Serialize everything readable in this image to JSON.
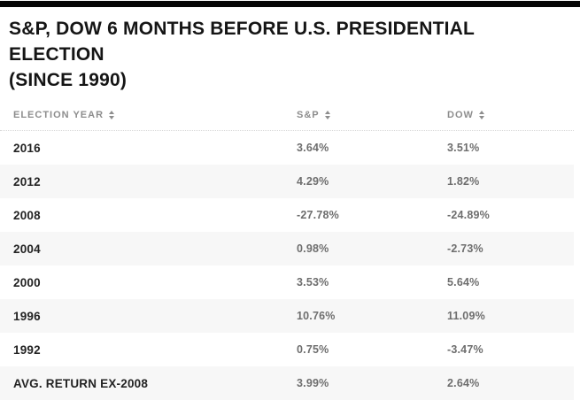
{
  "header": {
    "title_line1": "S&P, DOW 6 MONTHS BEFORE U.S. PRESIDENTIAL ELECTION",
    "title_line2": "(SINCE 1990)"
  },
  "colors": {
    "top_bar": "#050505",
    "title_text": "#151515",
    "header_text": "#8d8d8d",
    "year_text": "#232323",
    "value_text": "#6e6e6e",
    "row_alt_bg": "#f7f7f7",
    "header_border": "#d8d8d8"
  },
  "table": {
    "columns": [
      {
        "label": "ELECTION YEAR",
        "icon": "sort-arrows"
      },
      {
        "label": "S&P",
        "icon": "sort-arrows"
      },
      {
        "label": "DOW",
        "icon": "sort-arrows"
      }
    ],
    "rows": [
      {
        "year": "2016",
        "sp": "3.64%",
        "dow": "3.51%"
      },
      {
        "year": "2012",
        "sp": "4.29%",
        "dow": "1.82%"
      },
      {
        "year": "2008",
        "sp": "-27.78%",
        "dow": "-24.89%"
      },
      {
        "year": "2004",
        "sp": "0.98%",
        "dow": "-2.73%"
      },
      {
        "year": "2000",
        "sp": "3.53%",
        "dow": "5.64%"
      },
      {
        "year": "1996",
        "sp": "10.76%",
        "dow": "11.09%"
      },
      {
        "year": "1992",
        "sp": "0.75%",
        "dow": "-3.47%"
      },
      {
        "year": "AVG. RETURN EX-2008",
        "sp": "3.99%",
        "dow": "2.64%"
      }
    ]
  },
  "chart_data": {
    "type": "table",
    "title": "S&P, DOW 6 MONTHS BEFORE U.S. PRESIDENTIAL ELECTION (SINCE 1990)",
    "columns": [
      "ELECTION YEAR",
      "S&P",
      "DOW"
    ],
    "categories": [
      "2016",
      "2012",
      "2008",
      "2004",
      "2000",
      "1996",
      "1992"
    ],
    "series": [
      {
        "name": "S&P",
        "values": [
          3.64,
          4.29,
          -27.78,
          0.98,
          3.53,
          10.76,
          0.75
        ]
      },
      {
        "name": "DOW",
        "values": [
          3.51,
          1.82,
          -24.89,
          -2.73,
          5.64,
          11.09,
          -3.47
        ]
      }
    ],
    "summary_row": {
      "label": "AVG. RETURN EX-2008",
      "sp": 3.99,
      "dow": 2.64
    },
    "units": "percent",
    "rows": [
      [
        "2016",
        "3.64%",
        "3.51%"
      ],
      [
        "2012",
        "4.29%",
        "1.82%"
      ],
      [
        "2008",
        "-27.78%",
        "-24.89%"
      ],
      [
        "2004",
        "0.98%",
        "-2.73%"
      ],
      [
        "2000",
        "3.53%",
        "5.64%"
      ],
      [
        "1996",
        "10.76%",
        "11.09%"
      ],
      [
        "1992",
        "0.75%",
        "-3.47%"
      ],
      [
        "AVG. RETURN EX-2008",
        "3.99%",
        "2.64%"
      ]
    ]
  }
}
